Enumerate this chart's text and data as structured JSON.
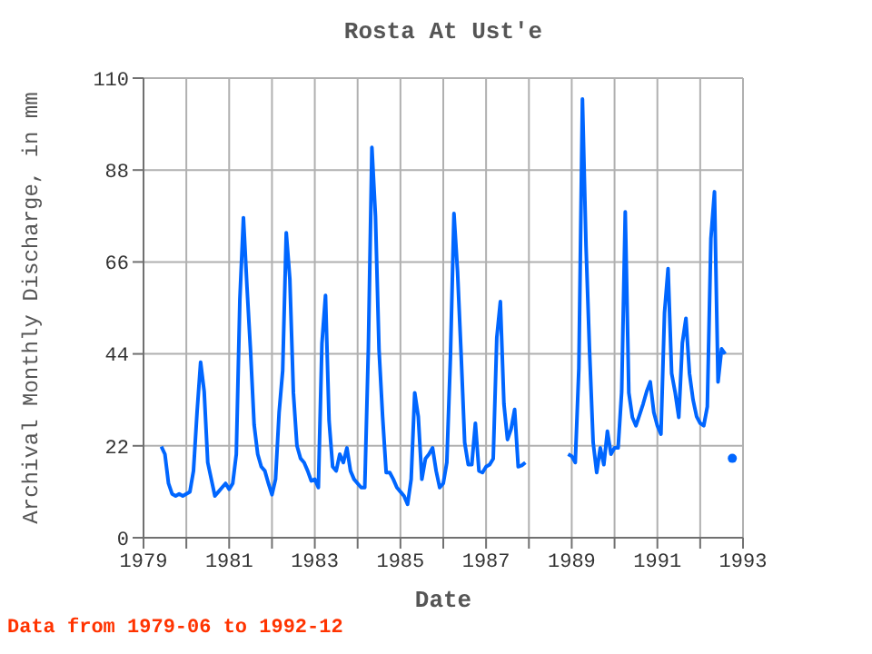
{
  "chart_data": {
    "type": "line",
    "title": "Rosta At Ust'e",
    "xlabel": "Date",
    "ylabel": "Archival Monthly Discharge, in mm",
    "annotations": [
      "Data from 1979-06 to 1992-12"
    ],
    "x": [
      "1979-06",
      "1979-07",
      "1979-08",
      "1979-09",
      "1979-10",
      "1979-11",
      "1979-12",
      "1980-01",
      "1980-02",
      "1980-03",
      "1980-04",
      "1980-05",
      "1980-06",
      "1980-07",
      "1980-08",
      "1980-09",
      "1980-10",
      "1980-11",
      "1980-12",
      "1981-01",
      "1981-02",
      "1981-03",
      "1981-04",
      "1981-05",
      "1981-06",
      "1981-07",
      "1981-08",
      "1981-09",
      "1981-10",
      "1981-11",
      "1981-12",
      "1982-01",
      "1982-02",
      "1982-03",
      "1982-04",
      "1982-05",
      "1982-06",
      "1982-07",
      "1982-08",
      "1982-09",
      "1982-10",
      "1982-11",
      "1982-12",
      "1983-01",
      "1983-02",
      "1983-03",
      "1983-04",
      "1983-05",
      "1983-06",
      "1983-07",
      "1983-08",
      "1983-09",
      "1983-10",
      "1983-11",
      "1983-12",
      "1984-01",
      "1984-02",
      "1984-03",
      "1984-04",
      "1984-05",
      "1984-06",
      "1984-07",
      "1984-08",
      "1984-09",
      "1984-10",
      "1984-11",
      "1984-12",
      "1985-01",
      "1985-02",
      "1985-03",
      "1985-04",
      "1985-05",
      "1985-06",
      "1985-07",
      "1985-08",
      "1985-09",
      "1985-10",
      "1985-11",
      "1985-12",
      "1986-01",
      "1986-02",
      "1986-03",
      "1986-04",
      "1986-05",
      "1986-06",
      "1986-07",
      "1986-08",
      "1986-09",
      "1986-10",
      "1986-11",
      "1986-12",
      "1987-01",
      "1987-02",
      "1987-03",
      "1987-04",
      "1987-05",
      "1987-06",
      "1987-07",
      "1987-08",
      "1987-09",
      "1987-10",
      "1987-11",
      "1987-12",
      "1988-01",
      "1988-02",
      "1988-03",
      "1988-04",
      "1988-05",
      "1988-06",
      "1988-07",
      "1988-08",
      "1988-09",
      "1988-10",
      "1988-11",
      "1988-12",
      "1989-01",
      "1989-02",
      "1989-03",
      "1989-04",
      "1989-05",
      "1989-06",
      "1989-07",
      "1989-08",
      "1989-09",
      "1989-10",
      "1989-11",
      "1989-12",
      "1990-01",
      "1990-02",
      "1990-03",
      "1990-04",
      "1990-05",
      "1990-06",
      "1990-07",
      "1990-08",
      "1990-09",
      "1990-10",
      "1990-11",
      "1990-12",
      "1991-01",
      "1991-02",
      "1991-03",
      "1991-04",
      "1991-05",
      "1991-06",
      "1991-07",
      "1991-08",
      "1991-09",
      "1991-10",
      "1991-11",
      "1991-12",
      "1992-01",
      "1992-02",
      "1992-03",
      "1992-04",
      "1992-05",
      "1992-06",
      "1992-07",
      "1992-08",
      "1992-09",
      "1992-10"
    ],
    "series": [
      {
        "color": "#0066ff",
        "values": [
          21.8,
          20,
          13,
          10.5,
          10,
          10.5,
          10,
          10.5,
          11,
          16,
          30,
          42,
          35,
          18,
          14,
          10,
          11,
          12,
          13,
          11.6,
          13,
          20,
          57,
          76.6,
          60,
          44.6,
          27,
          20,
          17,
          16,
          13,
          10.3,
          14,
          30,
          40,
          73,
          62,
          34.7,
          22,
          19,
          18,
          16,
          13.6,
          14,
          12,
          46.5,
          58,
          28,
          17,
          16,
          20,
          18,
          21.5,
          16,
          14,
          13,
          12,
          12,
          45,
          93.4,
          77,
          45,
          29,
          15.6,
          15.6,
          14,
          12,
          11,
          10,
          8,
          14,
          34.7,
          29,
          14,
          18.9,
          20,
          21.5,
          16,
          12,
          13,
          18,
          43,
          77.6,
          63.7,
          44,
          22.8,
          17.5,
          17.5,
          27.4,
          16,
          15.6,
          17,
          17.5,
          18.9,
          47.9,
          56.5,
          32,
          23.5,
          26,
          30.7,
          17,
          17.3,
          18,
          null,
          null,
          null,
          null,
          null,
          null,
          null,
          null,
          null,
          null,
          null,
          20,
          19.5,
          18,
          40.6,
          105,
          70,
          44.6,
          22.8,
          15.6,
          21.5,
          17.5,
          25.5,
          20,
          21.5,
          21.5,
          35,
          78,
          34.7,
          28.8,
          26.8,
          29.4,
          32,
          35,
          37.3,
          30,
          26.8,
          24.8,
          53.8,
          64.4,
          39.3,
          34.7,
          28.8,
          46.6,
          52.5,
          39.3,
          33,
          29,
          27.4,
          26.8,
          31.4,
          71.6,
          82.8,
          37.3,
          45.2,
          44,
          null,
          19
        ]
      }
    ],
    "xlim": [
      "1979",
      "1993"
    ],
    "xticks": [
      {
        "value": "1979",
        "label": "1979"
      },
      {
        "value": "1980",
        "label": null
      },
      {
        "value": "1981",
        "label": "1981"
      },
      {
        "value": "1982",
        "label": null
      },
      {
        "value": "1983",
        "label": "1983"
      },
      {
        "value": "1984",
        "label": null
      },
      {
        "value": "1985",
        "label": "1985"
      },
      {
        "value": "1986",
        "label": null
      },
      {
        "value": "1987",
        "label": "1987"
      },
      {
        "value": "1988",
        "label": null
      },
      {
        "value": "1989",
        "label": "1989"
      },
      {
        "value": "1990",
        "label": null
      },
      {
        "value": "1991",
        "label": "1991"
      },
      {
        "value": "1992",
        "label": null
      },
      {
        "value": "1993",
        "label": "1993"
      }
    ],
    "ylim": [
      0,
      110
    ],
    "yticks": [
      0,
      22,
      44,
      66,
      88,
      110
    ],
    "grid": true
  }
}
